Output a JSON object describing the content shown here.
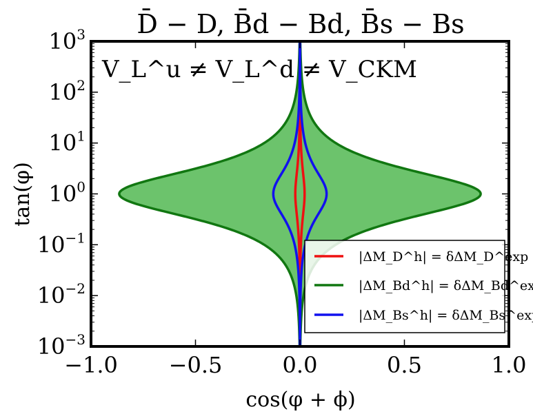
{
  "chart_data": {
    "type": "line",
    "title": "D̄ − D, B̄d − Bd, B̄s − Bs",
    "annotation": "V_L^u ≠ V_L^d ≠ V_CKM",
    "xlabel": "cos(φ + ϕ)",
    "ylabel": "tan(φ)",
    "xlim": [
      -1.0,
      1.0
    ],
    "ylim": [
      0.001,
      1000
    ],
    "yscale": "log",
    "grid": false,
    "legend_position": "lower-right",
    "x_ticks": [
      {
        "value": -1.0,
        "label": "−1.0"
      },
      {
        "value": -0.5,
        "label": "−0.5"
      },
      {
        "value": 0.0,
        "label": "0.0"
      },
      {
        "value": 0.5,
        "label": "0.5"
      },
      {
        "value": 1.0,
        "label": "1.0"
      }
    ],
    "y_ticks": [
      {
        "value": 0.001,
        "base": "10",
        "exp": "−3"
      },
      {
        "value": 0.01,
        "base": "10",
        "exp": "−2"
      },
      {
        "value": 0.1,
        "base": "10",
        "exp": "−1"
      },
      {
        "value": 1,
        "base": "10",
        "exp": "0"
      },
      {
        "value": 10,
        "base": "10",
        "exp": "1"
      },
      {
        "value": 100,
        "base": "10",
        "exp": "2"
      },
      {
        "value": 1000,
        "base": "10",
        "exp": "3"
      }
    ],
    "series": [
      {
        "name": "|ΔM_D^h| = δΔM_D^exp",
        "legend_label": "|ΔM_D^h| = δΔM_D^exp",
        "color": "#ee1111",
        "c": 0.0445,
        "fill": false
      },
      {
        "name": "|ΔM_Bd^h| = δΔM_Bd^exp",
        "legend_label": "|ΔM_Bd^h| = δΔM_Bd^exp",
        "color": "#117711",
        "fill_color": "#6cc36c",
        "c": 1.73,
        "fill": true
      },
      {
        "name": "|ΔM_Bs^h| = δΔM_Bs^exp",
        "legend_label": "|ΔM_Bs^h| = δΔM_Bs^exp",
        "color": "#1111ee",
        "c": 0.255,
        "fill": false
      }
    ]
  }
}
